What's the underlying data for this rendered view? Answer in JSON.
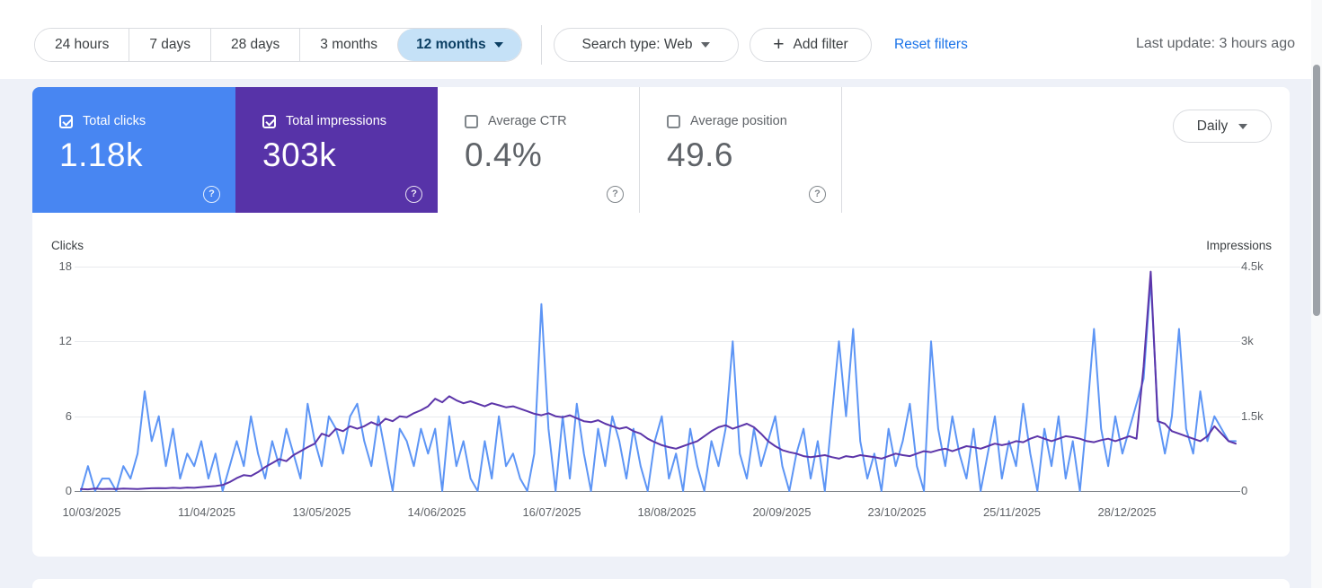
{
  "header": {
    "date_ranges": [
      {
        "label": "24 hours",
        "selected": false
      },
      {
        "label": "7 days",
        "selected": false
      },
      {
        "label": "28 days",
        "selected": false
      },
      {
        "label": "3 months",
        "selected": false
      },
      {
        "label": "12 months",
        "selected": true
      }
    ],
    "search_type_label": "Search type: Web",
    "add_filter_label": "Add filter",
    "reset_filters_label": "Reset filters",
    "last_update": "Last update: 3 hours ago"
  },
  "metrics": [
    {
      "label": "Total clicks",
      "value": "1.18k",
      "checked": true,
      "color": "#4886f2"
    },
    {
      "label": "Total impressions",
      "value": "303k",
      "checked": true,
      "color": "#5733a8"
    },
    {
      "label": "Average CTR",
      "value": "0.4%",
      "checked": false
    },
    {
      "label": "Average position",
      "value": "49.6",
      "checked": false
    }
  ],
  "granularity": {
    "label": "Daily"
  },
  "icons": {
    "help": "?",
    "plus": "+"
  },
  "chart_data": {
    "type": "line",
    "grid": true,
    "y_left": {
      "label": "Clicks",
      "max": 18,
      "ticks": [
        "18",
        "12",
        "6",
        "0"
      ]
    },
    "y_right": {
      "label": "Impressions",
      "max": 4500,
      "ticks": [
        "4.5k",
        "3k",
        "1.5k",
        "0"
      ]
    },
    "x_tick_labels": [
      "10/03/2025",
      "11/04/2025",
      "13/05/2025",
      "14/06/2025",
      "16/07/2025",
      "18/08/2025",
      "20/09/2025",
      "23/10/2025",
      "25/11/2025",
      "28/12/2025"
    ],
    "series": [
      {
        "name": "Clicks",
        "axis": "left",
        "color": "#5d95f5",
        "values": [
          0,
          2,
          0,
          1,
          1,
          0,
          2,
          1,
          3,
          8,
          4,
          6,
          2,
          5,
          1,
          3,
          2,
          4,
          1,
          3,
          0,
          2,
          4,
          2,
          6,
          3,
          1,
          4,
          2,
          5,
          3,
          1,
          7,
          4,
          2,
          6,
          5,
          3,
          6,
          7,
          4,
          2,
          6,
          3,
          0,
          5,
          4,
          2,
          5,
          3,
          5,
          0,
          6,
          2,
          4,
          1,
          0,
          4,
          1,
          6,
          2,
          3,
          1,
          0,
          3,
          15,
          5,
          0,
          6,
          1,
          7,
          3,
          0,
          5,
          2,
          6,
          4,
          1,
          5,
          2,
          0,
          4,
          6,
          1,
          3,
          0,
          5,
          2,
          0,
          4,
          2,
          5,
          12,
          3,
          1,
          5,
          2,
          4,
          6,
          2,
          0,
          3,
          5,
          1,
          4,
          0,
          6,
          12,
          6,
          13,
          4,
          1,
          3,
          0,
          5,
          2,
          4,
          7,
          2,
          0,
          12,
          5,
          2,
          6,
          3,
          1,
          5,
          0,
          3,
          6,
          1,
          4,
          2,
          7,
          3,
          0,
          5,
          2,
          6,
          1,
          4,
          0,
          6,
          13,
          5,
          2,
          6,
          3,
          5,
          7,
          9,
          17,
          6,
          3,
          6,
          13,
          5,
          3,
          8,
          4,
          6,
          5,
          4,
          4
        ]
      },
      {
        "name": "Impressions",
        "axis": "right",
        "color": "#5c35a9",
        "values": [
          40,
          35,
          50,
          40,
          45,
          40,
          50,
          45,
          40,
          50,
          55,
          60,
          55,
          65,
          60,
          70,
          65,
          80,
          90,
          100,
          120,
          180,
          260,
          320,
          300,
          380,
          480,
          560,
          640,
          600,
          720,
          800,
          880,
          950,
          1150,
          1100,
          1250,
          1200,
          1300,
          1250,
          1300,
          1380,
          1320,
          1450,
          1400,
          1500,
          1480,
          1560,
          1620,
          1700,
          1850,
          1780,
          1900,
          1820,
          1760,
          1800,
          1750,
          1700,
          1760,
          1720,
          1680,
          1700,
          1650,
          1600,
          1550,
          1520,
          1560,
          1500,
          1480,
          1520,
          1460,
          1400,
          1380,
          1420,
          1350,
          1300,
          1250,
          1280,
          1200,
          1150,
          1050,
          980,
          920,
          880,
          850,
          900,
          950,
          1000,
          1100,
          1200,
          1280,
          1320,
          1250,
          1300,
          1350,
          1280,
          1150,
          1000,
          900,
          820,
          780,
          750,
          700,
          680,
          700,
          720,
          680,
          650,
          700,
          680,
          720,
          700,
          680,
          650,
          700,
          750,
          720,
          700,
          750,
          800,
          780,
          820,
          850,
          800,
          850,
          900,
          880,
          850,
          900,
          950,
          920,
          950,
          1000,
          980,
          1050,
          1100,
          1050,
          1000,
          1050,
          1100,
          1080,
          1050,
          1000,
          980,
          1020,
          1050,
          1000,
          1050,
          1100,
          1050,
          2500,
          4400,
          1400,
          1350,
          1200,
          1150,
          1100,
          1050,
          1000,
          1100,
          1300,
          1150,
          1000,
          950
        ]
      }
    ]
  }
}
